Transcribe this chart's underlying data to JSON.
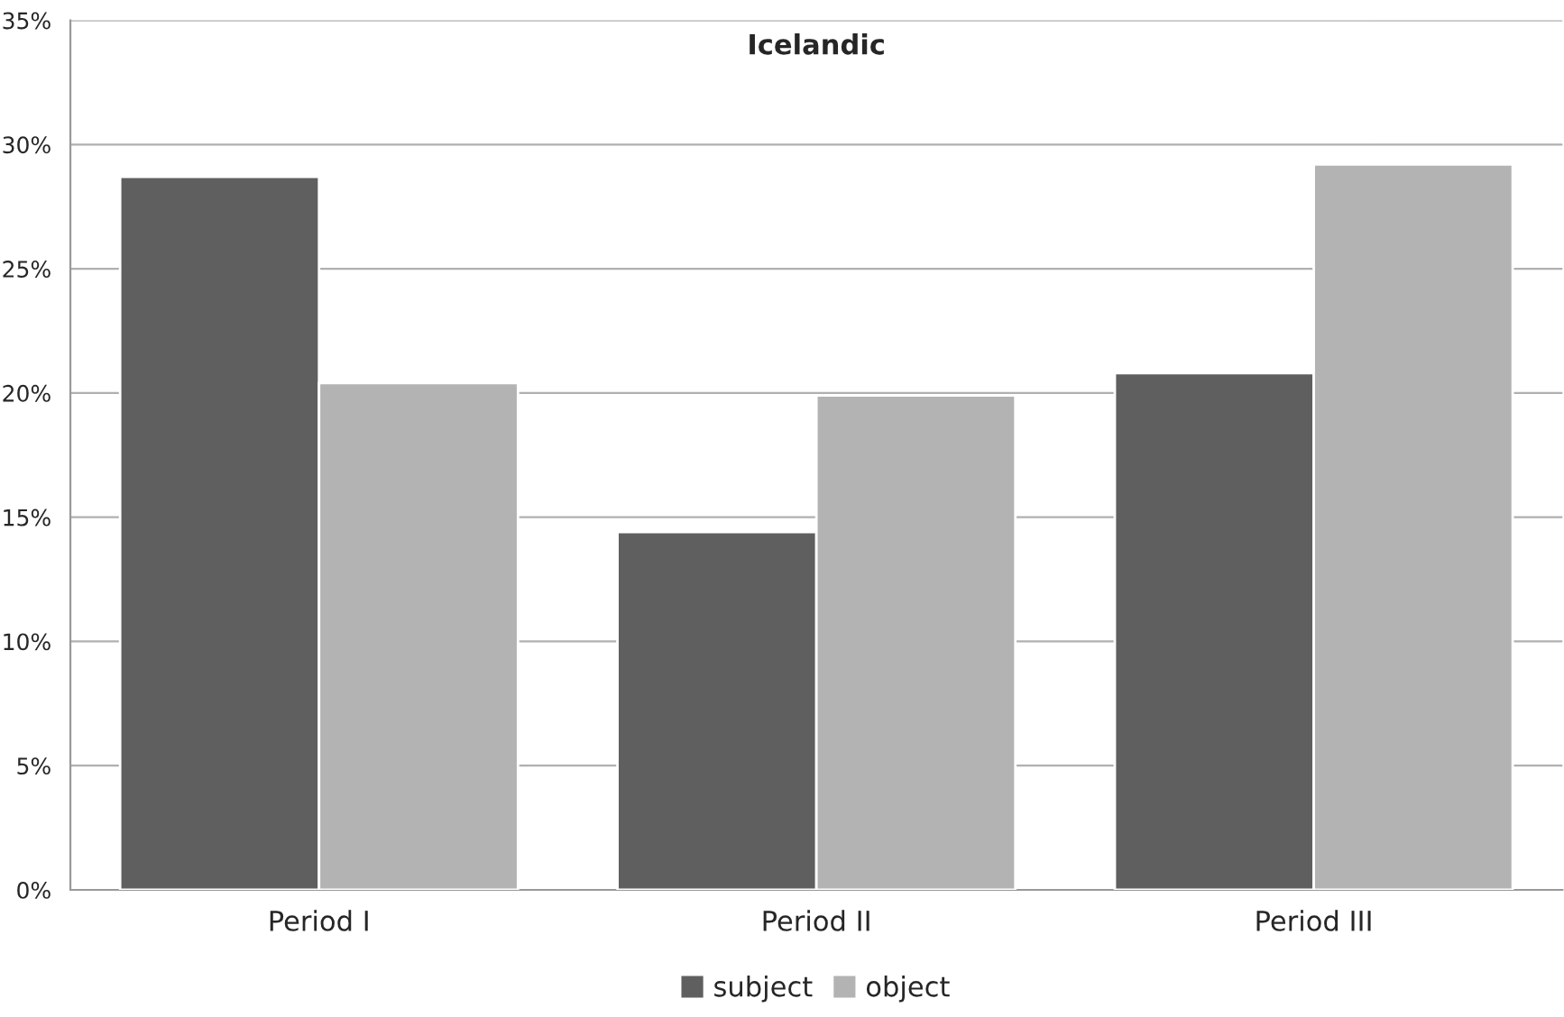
{
  "chart_data": {
    "type": "bar",
    "title": "Icelandic",
    "categories": [
      "Period I",
      "Period II",
      "Period III"
    ],
    "series": [
      {
        "name": "subject",
        "color": "#5f5f5f",
        "values": [
          28.7,
          14.4,
          20.8
        ]
      },
      {
        "name": "object",
        "color": "#b3b3b3",
        "values": [
          20.4,
          19.9,
          29.2
        ]
      }
    ],
    "ylim": [
      0,
      35
    ],
    "yticks": [
      {
        "value": 0,
        "label": "0%"
      },
      {
        "value": 5,
        "label": "5%"
      },
      {
        "value": 10,
        "label": "10%"
      },
      {
        "value": 15,
        "label": "15%"
      },
      {
        "value": 20,
        "label": "20%"
      },
      {
        "value": 25,
        "label": "25%"
      },
      {
        "value": 30,
        "label": "30%"
      },
      {
        "value": 35,
        "label": "35%"
      }
    ],
    "grid": "y",
    "legend": "bottom"
  }
}
